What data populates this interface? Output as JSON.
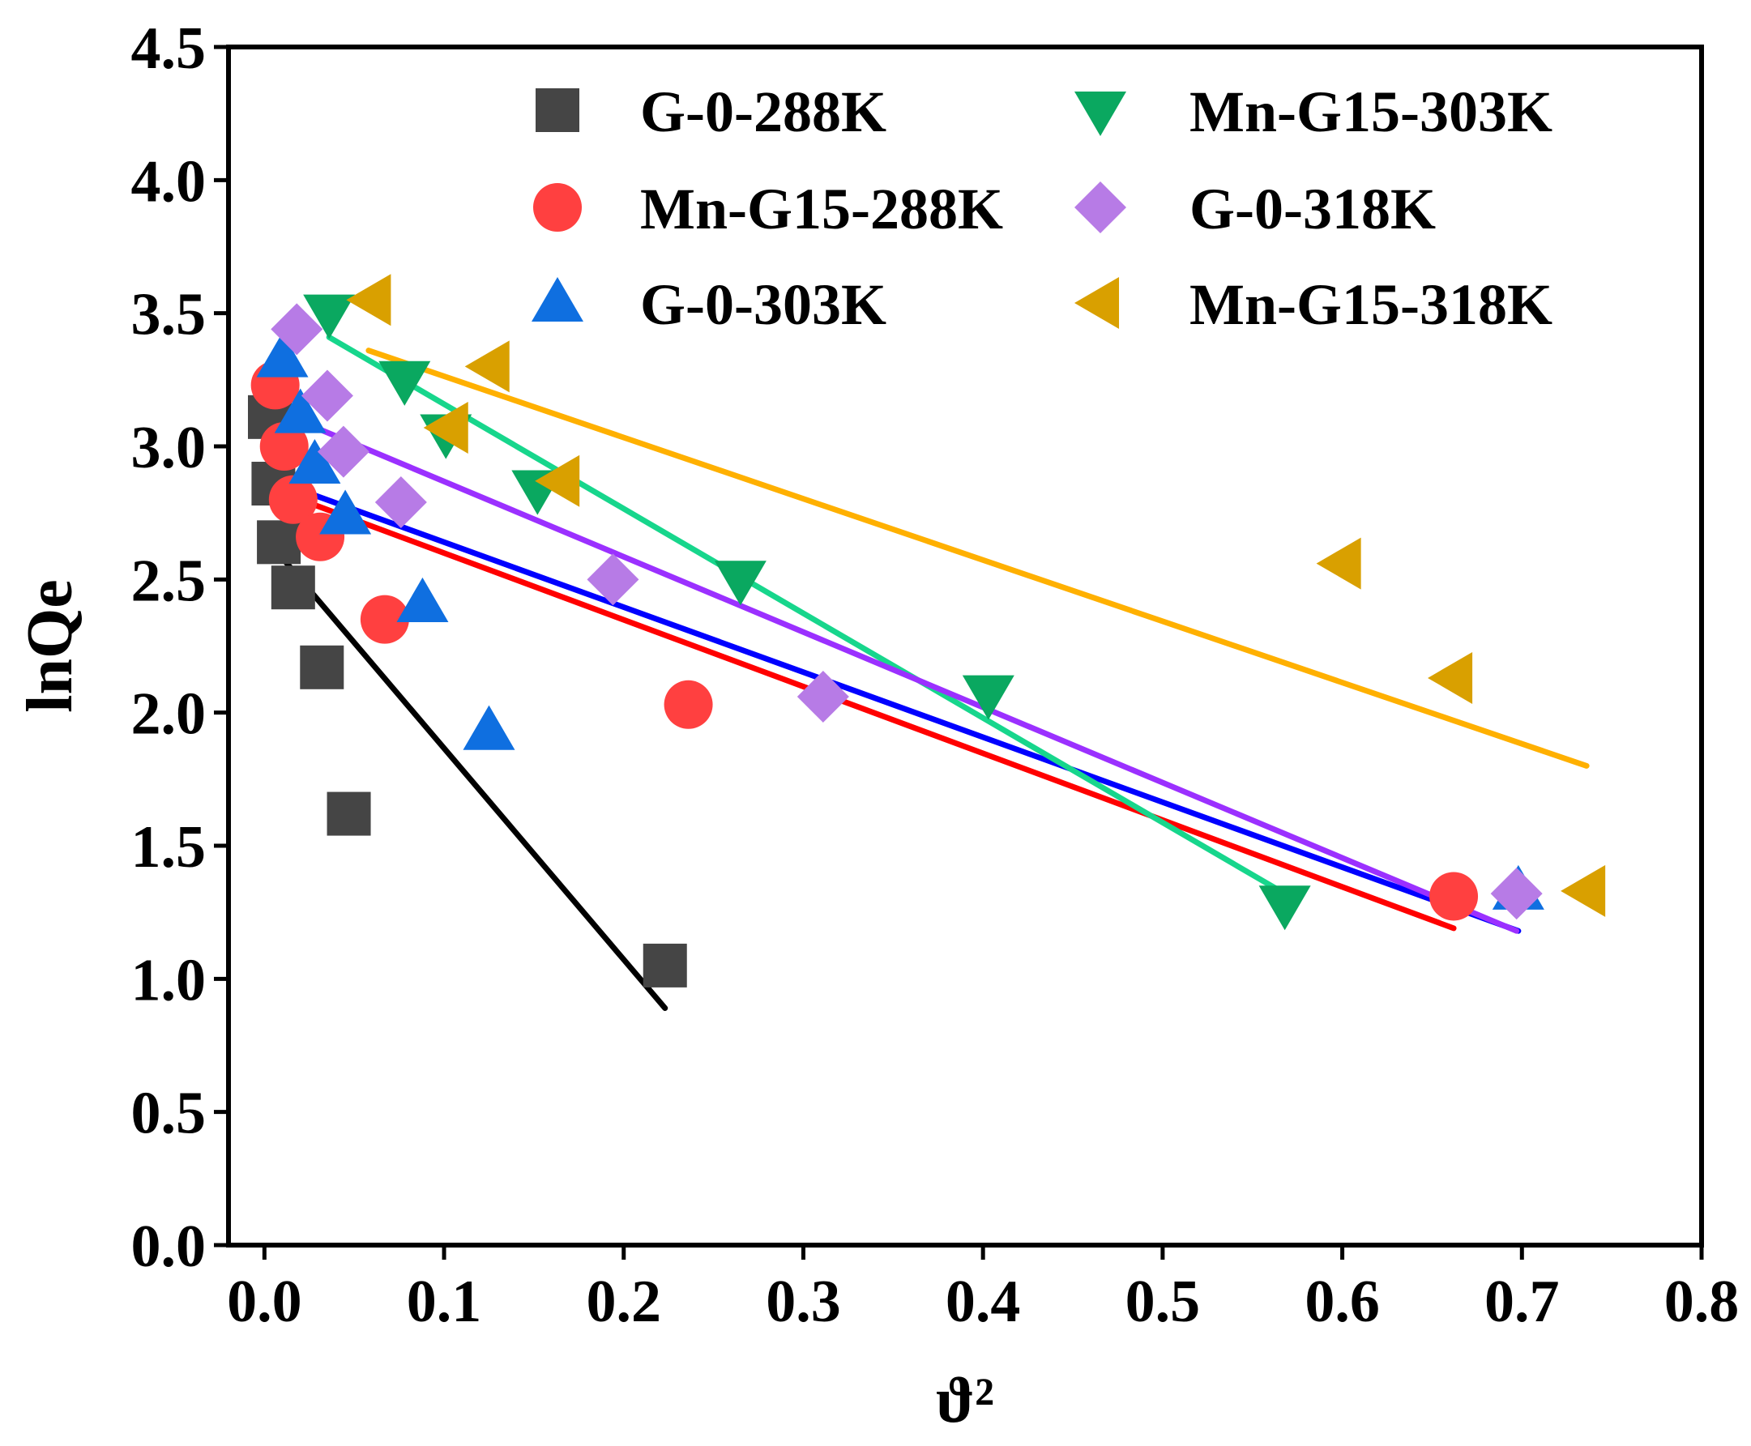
{
  "chart_data": {
    "type": "scatter",
    "title": "",
    "xlabel": "ϑ²",
    "ylabel": "lnQe",
    "xlim": [
      -0.02,
      0.8
    ],
    "ylim": [
      0,
      4.5
    ],
    "grid": false,
    "legend_position": "top-right",
    "x_ticks": [
      {
        "value": 0.0,
        "label": "0.0"
      },
      {
        "value": 0.1,
        "label": "0.1"
      },
      {
        "value": 0.2,
        "label": "0.2"
      },
      {
        "value": 0.3,
        "label": "0.3"
      },
      {
        "value": 0.4,
        "label": "0.4"
      },
      {
        "value": 0.5,
        "label": "0.5"
      },
      {
        "value": 0.6,
        "label": "0.6"
      },
      {
        "value": 0.7,
        "label": "0.7"
      },
      {
        "value": 0.8,
        "label": "0.8"
      }
    ],
    "y_ticks": [
      {
        "value": 0.0,
        "label": "0.0"
      },
      {
        "value": 0.5,
        "label": "0.5"
      },
      {
        "value": 1.0,
        "label": "1.0"
      },
      {
        "value": 1.5,
        "label": "1.5"
      },
      {
        "value": 2.0,
        "label": "2.0"
      },
      {
        "value": 2.5,
        "label": "2.5"
      },
      {
        "value": 3.0,
        "label": "3.0"
      },
      {
        "value": 3.5,
        "label": "3.5"
      },
      {
        "value": 4.0,
        "label": "4.0"
      },
      {
        "value": 4.5,
        "label": "4.5"
      }
    ],
    "series": [
      {
        "key": "g0-288k",
        "name": "G-0-288K",
        "marker": "square",
        "color": "#454545",
        "line_color": "#000000",
        "x": [
          0.003,
          0.005,
          0.008,
          0.016,
          0.032,
          0.047,
          0.223
        ],
        "y": [
          3.11,
          2.86,
          2.64,
          2.47,
          2.17,
          1.62,
          1.05
        ],
        "fit": [
          [
            0.005,
            2.62
          ],
          [
            0.223,
            0.89
          ]
        ]
      },
      {
        "key": "mn-g15-288k",
        "name": "Mn-G15-288K",
        "marker": "circle",
        "color": "#ff4040",
        "line_color": "#ff0000",
        "x": [
          0.006,
          0.011,
          0.016,
          0.031,
          0.067,
          0.236,
          0.662
        ],
        "y": [
          3.23,
          3.0,
          2.8,
          2.66,
          2.35,
          2.03,
          1.31
        ],
        "fit": [
          [
            0.008,
            2.83
          ],
          [
            0.662,
            1.19
          ]
        ]
      },
      {
        "key": "g0-303k",
        "name": "G-0-303K",
        "marker": "triangle-up",
        "color": "#0f6fe0",
        "line_color": "#0000ff",
        "x": [
          0.01,
          0.02,
          0.028,
          0.045,
          0.088,
          0.125,
          0.698
        ],
        "y": [
          3.33,
          3.12,
          2.93,
          2.74,
          2.41,
          1.93,
          1.33
        ],
        "fit": [
          [
            0.01,
            2.86
          ],
          [
            0.698,
            1.18
          ]
        ]
      },
      {
        "key": "mn-g15-303k",
        "name": "Mn-G15-303K",
        "marker": "triangle-down",
        "color": "#0aa860",
        "line_color": "#17d68c",
        "x": [
          0.036,
          0.078,
          0.101,
          0.152,
          0.265,
          0.403,
          0.568
        ],
        "y": [
          3.5,
          3.25,
          3.05,
          2.84,
          2.5,
          2.07,
          1.28
        ],
        "fit": [
          [
            0.036,
            3.41
          ],
          [
            0.568,
            1.32
          ]
        ]
      },
      {
        "key": "g0-318k",
        "name": "G-0-318K",
        "marker": "diamond",
        "color": "#b77be6",
        "line_color": "#9b30ff",
        "x": [
          0.018,
          0.035,
          0.044,
          0.076,
          0.194,
          0.311,
          0.697
        ],
        "y": [
          3.44,
          3.19,
          2.98,
          2.79,
          2.5,
          2.06,
          1.32
        ],
        "fit": [
          [
            0.018,
            3.1
          ],
          [
            0.697,
            1.18
          ]
        ]
      },
      {
        "key": "mn-g15-318k",
        "name": "Mn-G15-318K",
        "marker": "triangle-left",
        "color": "#d9a000",
        "line_color": "#ffb000",
        "x": [
          0.06,
          0.126,
          0.103,
          0.165,
          0.6,
          0.662,
          0.736
        ],
        "y": [
          3.55,
          3.3,
          3.07,
          2.87,
          2.56,
          2.13,
          1.33
        ],
        "fit": [
          [
            0.058,
            3.36
          ],
          [
            0.736,
            1.8
          ]
        ]
      }
    ]
  }
}
